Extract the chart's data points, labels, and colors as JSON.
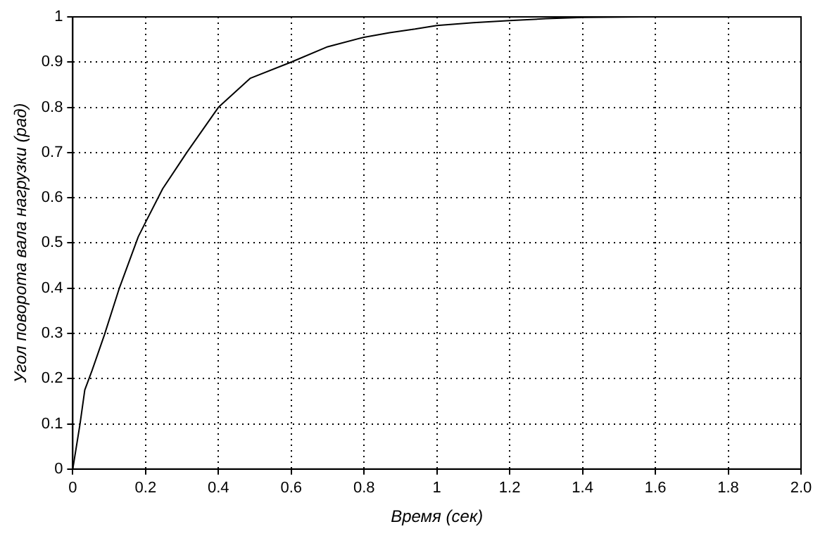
{
  "chart_data": {
    "type": "line",
    "xlabel": "Время (сек)",
    "ylabel": "Угол поворота вала нагрузки (рад)",
    "series": [
      {
        "color": "#000000",
        "x": [
          0,
          0.02,
          0.033,
          0.053,
          0.087,
          0.127,
          0.18,
          0.2,
          0.247,
          0.313,
          0.4,
          0.487,
          0.6,
          0.7,
          0.8,
          0.87,
          0.94,
          1.0,
          1.1,
          1.2,
          1.3,
          1.4,
          1.56
        ],
        "values": [
          0,
          0.1,
          0.175,
          0.218,
          0.297,
          0.398,
          0.514,
          0.546,
          0.62,
          0.7,
          0.8,
          0.864,
          0.9,
          0.934,
          0.955,
          0.965,
          0.973,
          0.981,
          0.987,
          0.992,
          0.996,
          0.999,
          1.0
        ]
      }
    ],
    "xlim": [
      0,
      2
    ],
    "xticks": [
      0,
      0.2,
      0.4,
      0.6,
      0.8,
      1,
      1.2,
      1.4,
      1.6,
      1.8,
      {
        "value": 2,
        "label": "2.0"
      }
    ],
    "ylim": [
      0,
      1
    ],
    "yticks": [
      0,
      0.1,
      0.2,
      0.3,
      0.4,
      0.5,
      0.6,
      0.7,
      0.8,
      0.9,
      1
    ],
    "grid": true,
    "line_style": "solid",
    "marker": "none"
  }
}
